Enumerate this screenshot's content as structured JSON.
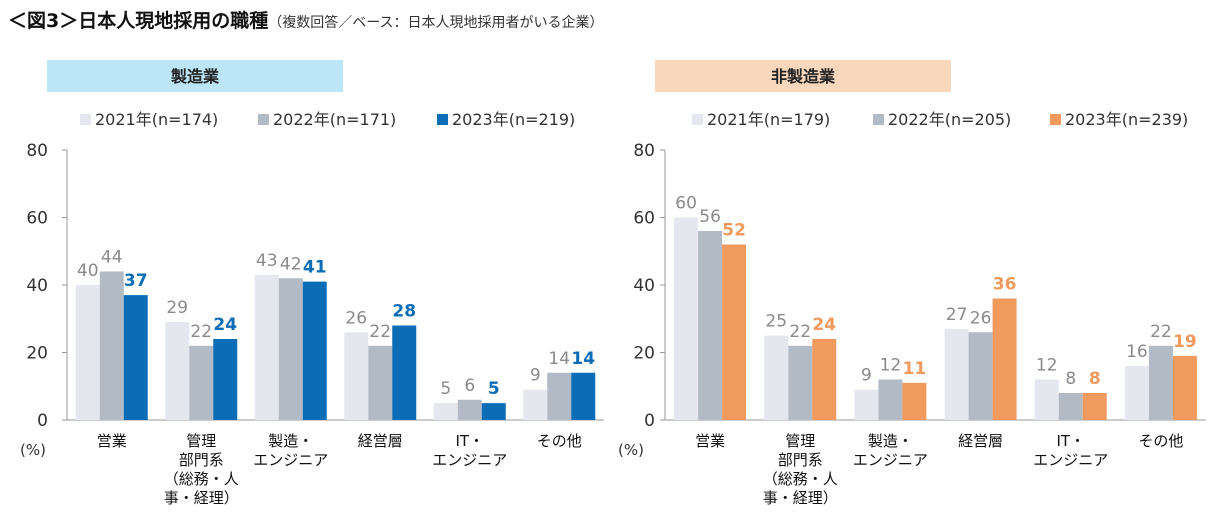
{
  "title": {
    "main": "＜図3＞日本人現地採用の職種",
    "sub": "（複数回答／ベース：日本人現地採用者がいる企業）"
  },
  "colors": {
    "y2021": "#e4e7ed",
    "y2022": "#b2bbc5",
    "manufacturing_2023": "#0b6db6",
    "nonmanufacturing_2023": "#f09a5e",
    "manufacturing_banner": "#bde5f8",
    "nonmanufacturing_banner": "#f9d7bd",
    "axis": "#999999"
  },
  "chart_data": [
    {
      "type": "bar",
      "title": "製造業",
      "ylabel": "(%)",
      "ylim": [
        0,
        80
      ],
      "yticks": [
        0,
        20,
        40,
        60,
        80
      ],
      "categories": [
        "営業",
        "管理\n部門系\n（総務・人\n事・経理）",
        "製造・\nエンジニア",
        "経営層",
        "IT・\nエンジニア",
        "その他"
      ],
      "series": [
        {
          "name": "2021年(n=174)",
          "values": [
            40,
            29,
            43,
            26,
            5,
            9
          ]
        },
        {
          "name": "2022年(n=171)",
          "values": [
            44,
            22,
            42,
            22,
            6,
            14
          ]
        },
        {
          "name": "2023年(n=219)",
          "values": [
            37,
            24,
            41,
            28,
            5,
            14
          ]
        }
      ]
    },
    {
      "type": "bar",
      "title": "非製造業",
      "ylabel": "(%)",
      "ylim": [
        0,
        80
      ],
      "yticks": [
        0,
        20,
        40,
        60,
        80
      ],
      "categories": [
        "営業",
        "管理\n部門系\n（総務・人\n事・経理）",
        "製造・\nエンジニア",
        "経営層",
        "IT・\nエンジニア",
        "その他"
      ],
      "series": [
        {
          "name": "2021年(n=179)",
          "values": [
            60,
            25,
            9,
            27,
            12,
            16
          ]
        },
        {
          "name": "2022年(n=205)",
          "values": [
            56,
            22,
            12,
            26,
            8,
            22
          ]
        },
        {
          "name": "2023年(n=239)",
          "values": [
            52,
            24,
            11,
            36,
            8,
            19
          ]
        }
      ]
    }
  ]
}
